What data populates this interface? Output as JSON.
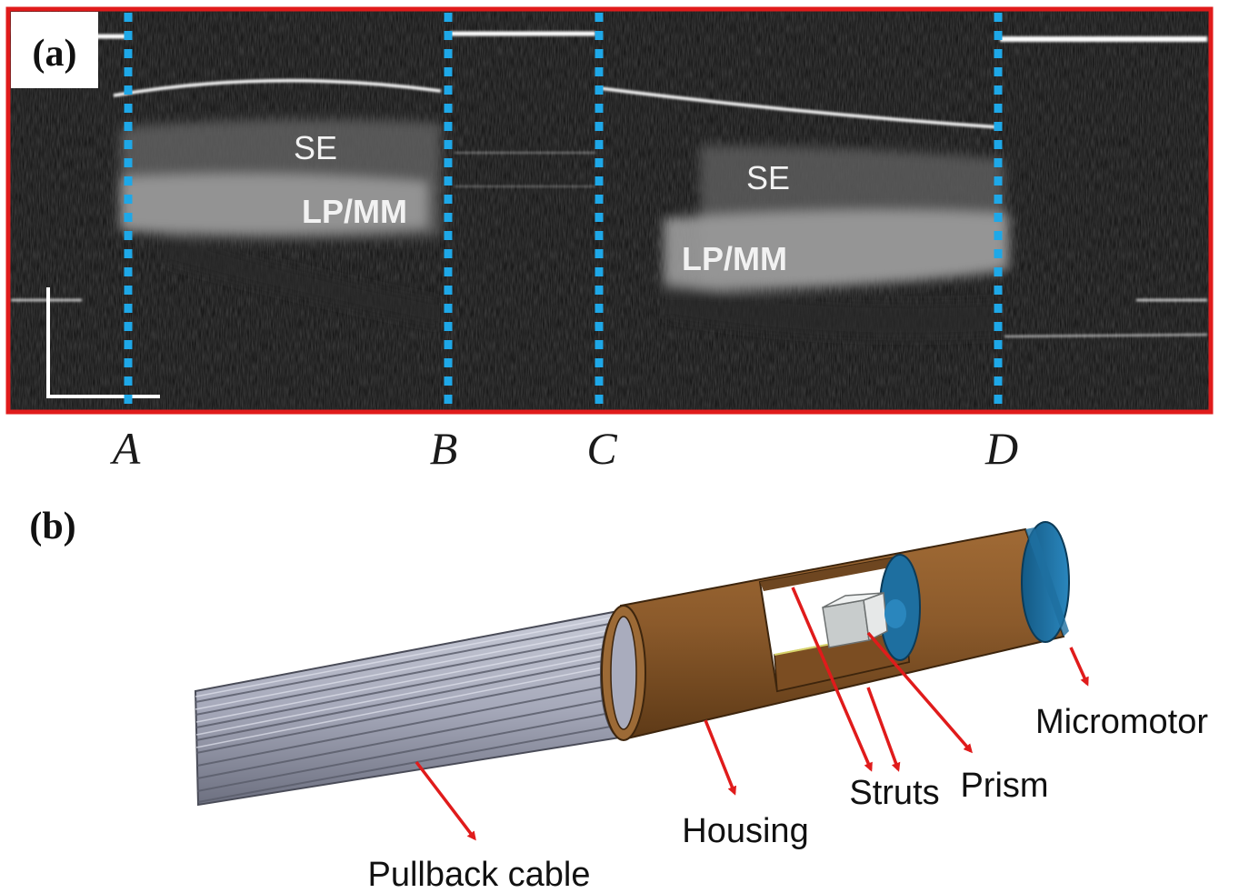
{
  "panel_a": {
    "panel_label": "(a)",
    "tissue_labels": {
      "se_left": "SE",
      "lpmm_left": "LP/MM",
      "se_right": "SE",
      "lpmm_right": "LP/MM"
    },
    "markers": [
      "A",
      "B",
      "C",
      "D"
    ],
    "colors": {
      "frame": "#e01b1b",
      "marker_lines": "#1ea8e8",
      "background": "#0d0d0d",
      "tissue_text": "#f2f2f2"
    }
  },
  "panel_b": {
    "panel_label": "(b)",
    "callouts": {
      "micromotor": "Micromotor",
      "struts": "Struts",
      "prism": "Prism",
      "housing": "Housing",
      "pullback_cable": "Pullback cable"
    },
    "colors": {
      "housing": "#8b5a2b",
      "cable": "#a9acbd",
      "motor": "#1e6fa0",
      "prism": "#c8cccc",
      "arrows": "#e01b1b"
    }
  }
}
